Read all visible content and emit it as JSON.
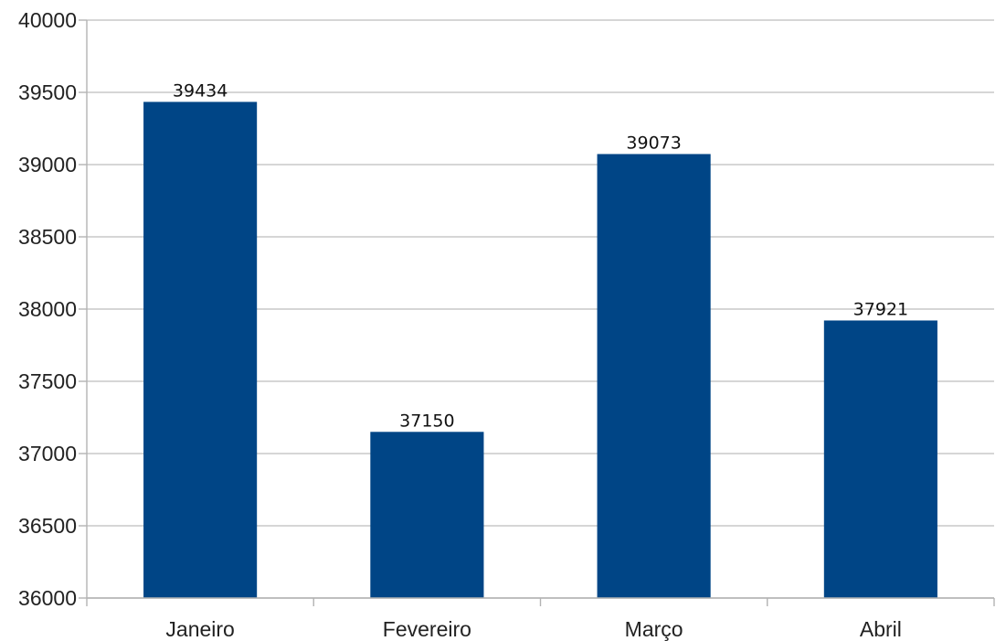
{
  "chart_data": {
    "type": "bar",
    "title": "",
    "xlabel": "",
    "ylabel": "",
    "categories": [
      "Janeiro",
      "Fevereiro",
      "Março",
      "Abril"
    ],
    "values": [
      39434,
      37150,
      39073,
      37921
    ],
    "data_labels": [
      "39434",
      "37150",
      "39073",
      "37921"
    ],
    "ylim": [
      36000,
      40000
    ],
    "y_ticks": [
      36000,
      36500,
      37000,
      37500,
      38000,
      38500,
      39000,
      39500,
      40000
    ],
    "y_tick_labels": [
      "36000",
      "36500",
      "37000",
      "37500",
      "38000",
      "38500",
      "39000",
      "39500",
      "40000"
    ],
    "bar_color": "#004586",
    "grid": true,
    "legend": "none"
  }
}
